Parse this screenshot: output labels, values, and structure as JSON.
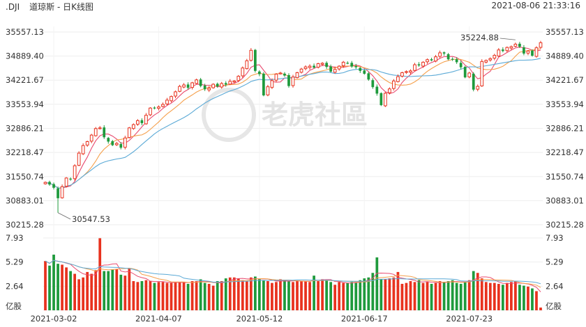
{
  "header": {
    "symbol": ".DJI",
    "title": "道琼斯 - 日K线图",
    "datetime": "2021-08-06 21:33:16"
  },
  "watermark": {
    "text": "老虎社區"
  },
  "colors": {
    "up": "#e8321e",
    "down": "#1e9a3c",
    "ma5": "#e84a6f",
    "ma10": "#f5a04c",
    "ma20": "#5aa9d6",
    "grid": "#eeeeee"
  },
  "chart_data": {
    "type": "candlestick",
    "price_axis": {
      "ticks": [
        "35557.13",
        "34889.40",
        "34221.67",
        "33553.94",
        "32886.21",
        "32218.47",
        "31550.74",
        "30883.01",
        "30215.28"
      ],
      "ylim": [
        30215.28,
        35557.13
      ]
    },
    "volume_axis": {
      "ticks": [
        "7.93",
        "5.29",
        "2.64"
      ],
      "unit": "亿股",
      "ylim": [
        0,
        7.93
      ]
    },
    "x_labels": [
      {
        "label": "2021-03-02",
        "index": 2
      },
      {
        "label": "2021-04-07",
        "index": 27
      },
      {
        "label": "2021-05-12",
        "index": 51
      },
      {
        "label": "2021-06-17",
        "index": 76
      },
      {
        "label": "2021-07-23",
        "index": 101
      }
    ],
    "annotations": [
      {
        "text": "30547.53",
        "type": "min",
        "index": 3,
        "value": 30547.53
      },
      {
        "text": "35224.88",
        "type": "max",
        "index": 112,
        "value": 35224.88
      }
    ],
    "closes": [
      31390,
      31330,
      31240,
      30950,
      31270,
      31510,
      31480,
      31850,
      32200,
      32410,
      32520,
      32700,
      32880,
      32900,
      32640,
      32520,
      32420,
      32470,
      32350,
      32620,
      32900,
      32990,
      33100,
      33030,
      33250,
      33450,
      33460,
      33480,
      33550,
      33670,
      33770,
      33900,
      34050,
      34090,
      34010,
      34150,
      34230,
      34060,
      33970,
      34000,
      34110,
      34050,
      34130,
      34100,
      34190,
      34200,
      34330,
      34560,
      34760,
      35050,
      34480,
      34390,
      33800,
      34040,
      34210,
      34390,
      34420,
      34350,
      34060,
      34310,
      34430,
      34530,
      34590,
      34610,
      34570,
      34680,
      34690,
      34590,
      34460,
      34520,
      34610,
      34720,
      34690,
      34600,
      34580,
      34480,
      34400,
      34240,
      34030,
      33850,
      33530,
      33860,
      33980,
      34200,
      34320,
      34430,
      34460,
      34480,
      34650,
      34630,
      34720,
      34790,
      34770,
      34870,
      34980,
      34960,
      34800,
      34790,
      34720,
      34580,
      34300,
      34420,
      33960,
      34050,
      34740,
      34770,
      34820,
      34910,
      35060,
      35030,
      35130,
      35150,
      35220,
      35150,
      34960,
      35030,
      34900,
      35120,
      35260
    ],
    "volumes": [
      5.4,
      4.9,
      6.1,
      5.1,
      5.0,
      4.7,
      4.3,
      4.0,
      3.4,
      3.6,
      4.2,
      4.0,
      4.4,
      7.9,
      4.3,
      4.3,
      4.5,
      4.5,
      3.9,
      3.8,
      4.6,
      3.2,
      3.1,
      3.2,
      3.3,
      3.2,
      3.0,
      3.1,
      3.1,
      3.0,
      3.0,
      3.1,
      3.1,
      3.1,
      2.9,
      3.2,
      3.2,
      3.4,
      3.0,
      2.9,
      2.7,
      3.2,
      3.2,
      3.5,
      3.6,
      3.6,
      3.5,
      3.3,
      3.2,
      3.6,
      3.7,
      3.4,
      3.3,
      3.2,
      3.0,
      3.1,
      3.4,
      3.3,
      3.2,
      3.1,
      3.2,
      3.2,
      3.2,
      3.1,
      3.8,
      3.2,
      3.4,
      3.3,
      3.1,
      2.8,
      3.1,
      3.0,
      3.0,
      3.1,
      3.0,
      3.3,
      3.5,
      3.6,
      4.1,
      5.8,
      3.4,
      3.4,
      3.5,
      3.6,
      4.2,
      2.9,
      3.0,
      3.2,
      3.1,
      3.3,
      3.0,
      3.1,
      2.9,
      3.0,
      3.2,
      3.1,
      3.2,
      3.3,
      3.0,
      2.9,
      3.1,
      3.3,
      4.3,
      4.1,
      3.5,
      3.1,
      3.0,
      3.0,
      2.9,
      2.8,
      3.0,
      3.1,
      3.2,
      2.8,
      2.7,
      2.6,
      2.4,
      2.1,
      0.3
    ]
  }
}
